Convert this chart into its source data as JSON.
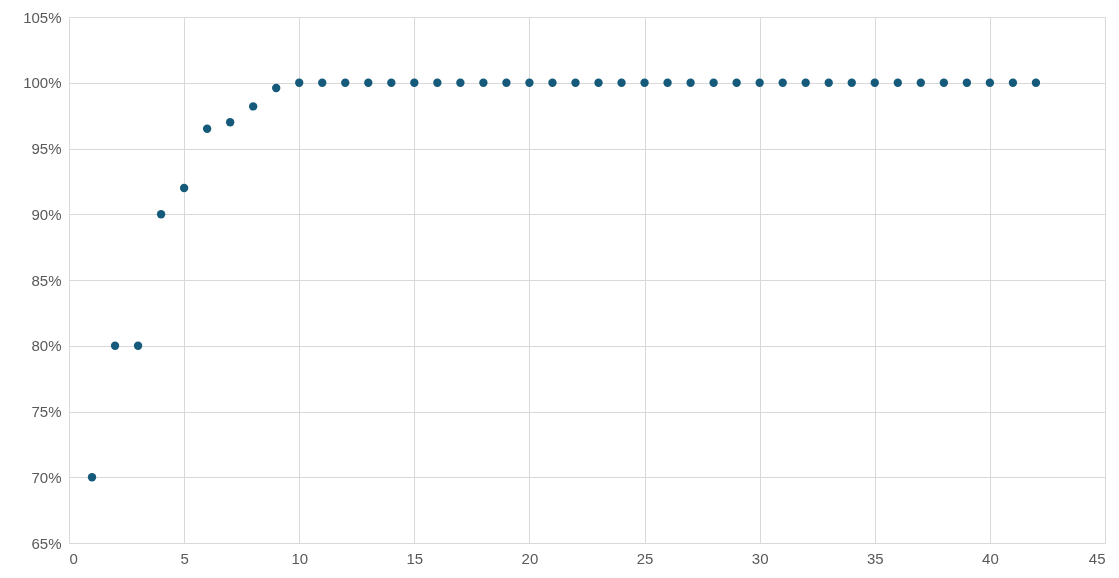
{
  "chart_data": {
    "type": "scatter",
    "x": [
      1,
      2,
      3,
      4,
      5,
      6,
      7,
      8,
      9,
      10,
      11,
      12,
      13,
      14,
      15,
      16,
      17,
      18,
      19,
      20,
      21,
      22,
      23,
      24,
      25,
      26,
      27,
      28,
      29,
      30,
      31,
      32,
      33,
      34,
      35,
      36,
      37,
      38,
      39,
      40,
      41,
      42
    ],
    "series": [
      {
        "color": "#155a7b",
        "values": [
          70,
          80,
          80,
          90,
          92,
          96.5,
          97,
          98.2,
          99.6,
          100,
          100,
          100,
          100,
          100,
          100,
          100,
          100,
          100,
          100,
          100,
          100,
          100,
          100,
          100,
          100,
          100,
          100,
          100,
          100,
          100,
          100,
          100,
          100,
          100,
          100,
          100,
          100,
          100,
          100,
          100,
          100,
          100
        ]
      }
    ],
    "xlim": [
      0,
      45
    ],
    "xticks": [
      0,
      5,
      10,
      15,
      20,
      25,
      30,
      35,
      40,
      45
    ],
    "ylim": [
      65,
      105
    ],
    "yticks": [
      {
        "value": 65,
        "label": "65%"
      },
      {
        "value": 70,
        "label": "70%"
      },
      {
        "value": 75,
        "label": "75%"
      },
      {
        "value": 80,
        "label": "80%"
      },
      {
        "value": 85,
        "label": "85%"
      },
      {
        "value": 90,
        "label": "90%"
      },
      {
        "value": 95,
        "label": "95%"
      },
      {
        "value": 100,
        "label": "100%"
      },
      {
        "value": 105,
        "label": "105%"
      }
    ],
    "grid": true,
    "marker": "circle"
  }
}
